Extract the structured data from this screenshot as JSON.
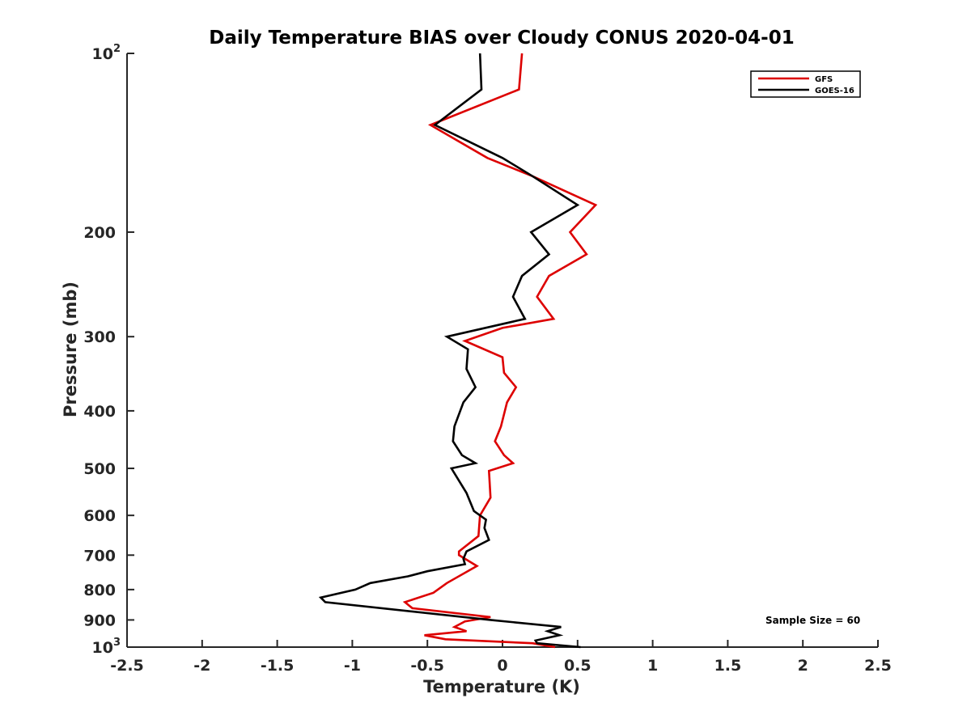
{
  "chart_data": {
    "type": "line",
    "title": "Daily Temperature BIAS over Cloudy CONUS 2020-04-01",
    "xlabel": "Temperature (K)",
    "ylabel": "Pressure (mb)",
    "xlim": [
      -2.5,
      2.5
    ],
    "ylim": [
      100,
      1000
    ],
    "y_scale": "log",
    "y_reversed": true,
    "grid": false,
    "legend": "top-right",
    "x_ticks": [
      "-2.5",
      "-2",
      "-1.5",
      "-1",
      "-0.5",
      "0",
      "0.5",
      "1",
      "1.5",
      "2",
      "2.5"
    ],
    "y_ticks": [
      {
        "value": 100,
        "base": "10",
        "exp": "2"
      },
      {
        "value": 200,
        "label": "200"
      },
      {
        "value": 300,
        "label": "300"
      },
      {
        "value": 400,
        "label": "400"
      },
      {
        "value": 500,
        "label": "500"
      },
      {
        "value": 600,
        "label": "600"
      },
      {
        "value": 700,
        "label": "700"
      },
      {
        "value": 800,
        "label": "800"
      },
      {
        "value": 900,
        "label": "900"
      },
      {
        "value": 1000,
        "base": "10",
        "exp": "3"
      }
    ],
    "annotation": "Sample Size = 60",
    "series": [
      {
        "name": "GFS",
        "color": "#dd0000",
        "points": [
          {
            "x": 0.13,
            "p": 100
          },
          {
            "x": 0.11,
            "p": 115
          },
          {
            "x": -0.48,
            "p": 132
          },
          {
            "x": -0.1,
            "p": 150
          },
          {
            "x": 0.2,
            "p": 161
          },
          {
            "x": 0.62,
            "p": 180
          },
          {
            "x": 0.45,
            "p": 200
          },
          {
            "x": 0.56,
            "p": 218
          },
          {
            "x": 0.31,
            "p": 237
          },
          {
            "x": 0.23,
            "p": 257
          },
          {
            "x": 0.34,
            "p": 280
          },
          {
            "x": 0.0,
            "p": 290
          },
          {
            "x": -0.25,
            "p": 305
          },
          {
            "x": 0.0,
            "p": 325
          },
          {
            "x": 0.01,
            "p": 345
          },
          {
            "x": 0.09,
            "p": 365
          },
          {
            "x": 0.03,
            "p": 387
          },
          {
            "x": -0.01,
            "p": 425
          },
          {
            "x": -0.05,
            "p": 450
          },
          {
            "x": 0.01,
            "p": 475
          },
          {
            "x": 0.07,
            "p": 490
          },
          {
            "x": -0.09,
            "p": 505
          },
          {
            "x": -0.08,
            "p": 560
          },
          {
            "x": -0.15,
            "p": 600
          },
          {
            "x": -0.16,
            "p": 650
          },
          {
            "x": -0.29,
            "p": 690
          },
          {
            "x": -0.29,
            "p": 700
          },
          {
            "x": -0.17,
            "p": 730
          },
          {
            "x": -0.37,
            "p": 780
          },
          {
            "x": -0.46,
            "p": 810
          },
          {
            "x": -0.65,
            "p": 840
          },
          {
            "x": -0.6,
            "p": 860
          },
          {
            "x": -0.08,
            "p": 890
          },
          {
            "x": -0.25,
            "p": 905
          },
          {
            "x": -0.32,
            "p": 925
          },
          {
            "x": -0.24,
            "p": 940
          },
          {
            "x": -0.52,
            "p": 955
          },
          {
            "x": -0.38,
            "p": 970
          },
          {
            "x": 0.2,
            "p": 985
          },
          {
            "x": 0.35,
            "p": 1000
          }
        ]
      },
      {
        "name": "GOES-16",
        "color": "#000000",
        "points": [
          {
            "x": -0.15,
            "p": 100
          },
          {
            "x": -0.14,
            "p": 115
          },
          {
            "x": -0.45,
            "p": 132
          },
          {
            "x": 0.0,
            "p": 150
          },
          {
            "x": 0.2,
            "p": 161
          },
          {
            "x": 0.5,
            "p": 180
          },
          {
            "x": 0.19,
            "p": 200
          },
          {
            "x": 0.31,
            "p": 218
          },
          {
            "x": 0.13,
            "p": 237
          },
          {
            "x": 0.07,
            "p": 257
          },
          {
            "x": 0.15,
            "p": 280
          },
          {
            "x": -0.37,
            "p": 300
          },
          {
            "x": -0.23,
            "p": 315
          },
          {
            "x": -0.24,
            "p": 340
          },
          {
            "x": -0.18,
            "p": 365
          },
          {
            "x": -0.26,
            "p": 387
          },
          {
            "x": -0.32,
            "p": 425
          },
          {
            "x": -0.33,
            "p": 450
          },
          {
            "x": -0.27,
            "p": 475
          },
          {
            "x": -0.18,
            "p": 490
          },
          {
            "x": -0.34,
            "p": 500
          },
          {
            "x": -0.24,
            "p": 550
          },
          {
            "x": -0.19,
            "p": 590
          },
          {
            "x": -0.11,
            "p": 610
          },
          {
            "x": -0.12,
            "p": 630
          },
          {
            "x": -0.09,
            "p": 660
          },
          {
            "x": -0.24,
            "p": 690
          },
          {
            "x": -0.26,
            "p": 710
          },
          {
            "x": -0.25,
            "p": 725
          },
          {
            "x": -0.5,
            "p": 745
          },
          {
            "x": -0.63,
            "p": 760
          },
          {
            "x": -0.88,
            "p": 780
          },
          {
            "x": -0.98,
            "p": 800
          },
          {
            "x": -1.21,
            "p": 825
          },
          {
            "x": -1.18,
            "p": 840
          },
          {
            "x": -0.08,
            "p": 900
          },
          {
            "x": 0.39,
            "p": 925
          },
          {
            "x": 0.3,
            "p": 940
          },
          {
            "x": 0.38,
            "p": 955
          },
          {
            "x": 0.22,
            "p": 975
          },
          {
            "x": 0.23,
            "p": 985
          },
          {
            "x": 0.52,
            "p": 1000
          }
        ]
      }
    ]
  }
}
